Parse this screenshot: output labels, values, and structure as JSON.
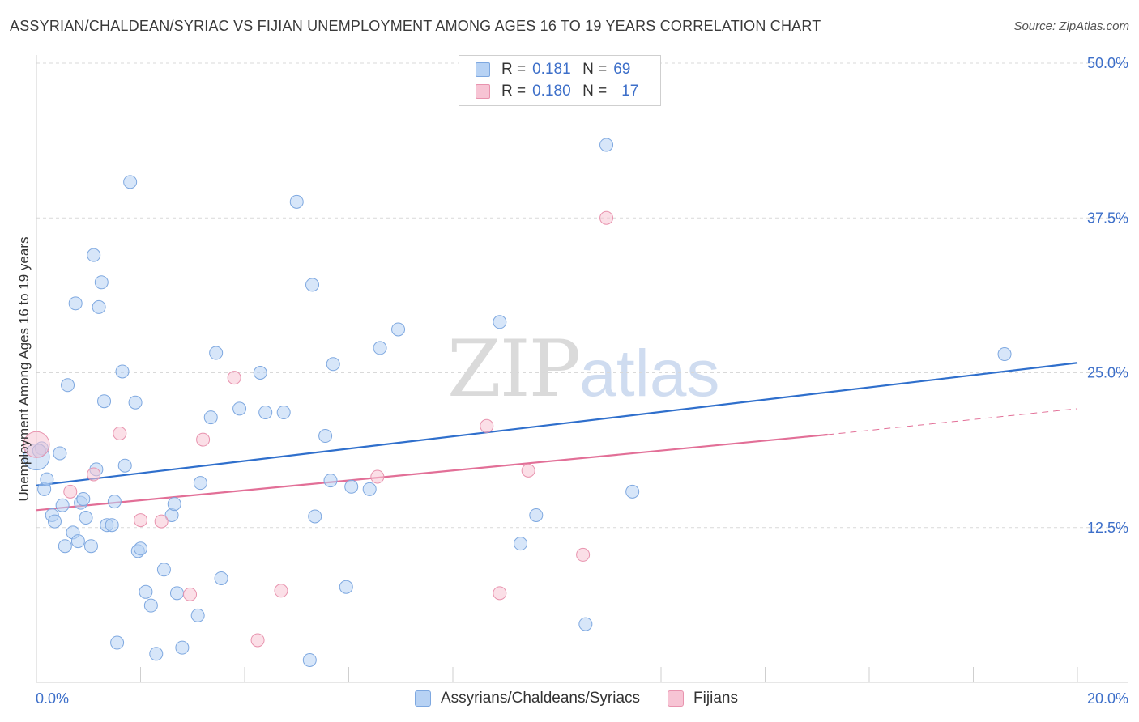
{
  "title": "ASSYRIAN/CHALDEAN/SYRIAC VS FIJIAN UNEMPLOYMENT AMONG AGES 16 TO 19 YEARS CORRELATION CHART",
  "source": "Source: ZipAtlas.com",
  "watermark": {
    "zip": "ZIP",
    "atlas": "atlas"
  },
  "legend_top": {
    "rows": [
      {
        "r_label": "R =",
        "r_value": "0.181",
        "n_label": "N =",
        "n_value": "69"
      },
      {
        "r_label": "R =",
        "r_value": "0.180",
        "n_label": "N =",
        "n_value": "17"
      }
    ]
  },
  "legend_bottom": {
    "series1": "Assyrians/Chaldeans/Syriacs",
    "series2": "Fijians"
  },
  "colors": {
    "blue_fill": "#b7d2f4",
    "blue_stroke": "#7ea8e0",
    "blue_line": "#2f6fcc",
    "pink_fill": "#f7c4d4",
    "pink_stroke": "#e893ae",
    "pink_line": "#e26f97",
    "tick_label": "#3d6fc9",
    "grid": "#d9d9d9"
  },
  "chart_data": {
    "type": "scatter",
    "xlabel": "",
    "ylabel": "Unemployment Among Ages 16 to 19 years",
    "xlim": [
      0,
      20
    ],
    "ylim": [
      0,
      50
    ],
    "x_tick_labels": [
      "0.0%",
      "20.0%"
    ],
    "y_ticks": [
      12.5,
      25.0,
      37.5,
      50.0
    ],
    "y_tick_labels": [
      "12.5%",
      "25.0%",
      "37.5%",
      "50.0%"
    ],
    "series": [
      {
        "name": "Assyrians/Chaldeans/Syriacs",
        "r": 0.181,
        "n": 69,
        "trend": {
          "x0": 0.0,
          "y0": 15.9,
          "x1": 20.0,
          "y1": 25.8
        },
        "points": [
          [
            0.0,
            18.2
          ],
          [
            0.1,
            18.9
          ],
          [
            0.15,
            15.6
          ],
          [
            0.2,
            16.4
          ],
          [
            0.3,
            13.5
          ],
          [
            0.35,
            13.0
          ],
          [
            0.45,
            18.5
          ],
          [
            0.5,
            14.3
          ],
          [
            0.55,
            11.0
          ],
          [
            0.6,
            24.0
          ],
          [
            0.7,
            12.1
          ],
          [
            0.75,
            30.6
          ],
          [
            0.8,
            11.4
          ],
          [
            0.85,
            14.5
          ],
          [
            0.9,
            14.8
          ],
          [
            0.95,
            13.3
          ],
          [
            1.05,
            11.0
          ],
          [
            1.1,
            34.5
          ],
          [
            1.15,
            17.2
          ],
          [
            1.2,
            30.3
          ],
          [
            1.25,
            32.3
          ],
          [
            1.3,
            22.7
          ],
          [
            1.35,
            12.7
          ],
          [
            1.45,
            12.7
          ],
          [
            1.5,
            14.6
          ],
          [
            1.55,
            3.2
          ],
          [
            1.65,
            25.1
          ],
          [
            1.7,
            17.5
          ],
          [
            1.8,
            40.4
          ],
          [
            1.9,
            22.6
          ],
          [
            1.95,
            10.6
          ],
          [
            2.0,
            10.8
          ],
          [
            2.1,
            7.3
          ],
          [
            2.2,
            6.2
          ],
          [
            2.3,
            2.3
          ],
          [
            2.45,
            9.1
          ],
          [
            2.6,
            13.5
          ],
          [
            2.65,
            14.4
          ],
          [
            2.7,
            7.2
          ],
          [
            2.8,
            2.8
          ],
          [
            3.15,
            16.1
          ],
          [
            3.1,
            5.4
          ],
          [
            3.35,
            21.4
          ],
          [
            3.45,
            26.6
          ],
          [
            3.55,
            8.4
          ],
          [
            3.9,
            22.1
          ],
          [
            4.3,
            25.0
          ],
          [
            4.4,
            21.8
          ],
          [
            4.75,
            21.8
          ],
          [
            5.0,
            38.8
          ],
          [
            5.25,
            1.8
          ],
          [
            5.3,
            32.1
          ],
          [
            5.35,
            13.4
          ],
          [
            5.55,
            19.9
          ],
          [
            5.65,
            16.3
          ],
          [
            5.7,
            25.7
          ],
          [
            5.95,
            7.7
          ],
          [
            6.05,
            15.8
          ],
          [
            6.4,
            15.6
          ],
          [
            6.6,
            27.0
          ],
          [
            6.95,
            28.5
          ],
          [
            8.9,
            29.1
          ],
          [
            9.3,
            11.2
          ],
          [
            9.6,
            13.5
          ],
          [
            10.55,
            4.7
          ],
          [
            10.95,
            43.4
          ],
          [
            11.45,
            15.4
          ],
          [
            18.6,
            26.5
          ],
          [
            0.05,
            18.7
          ]
        ]
      },
      {
        "name": "Fijians",
        "r": 0.18,
        "n": 17,
        "trend": {
          "x0": 0.0,
          "y0": 13.9,
          "x1": 15.2,
          "y1": 20.0,
          "dash_x1": 20.0,
          "dash_y1": 22.1
        },
        "points": [
          [
            0.0,
            19.2
          ],
          [
            0.65,
            15.4
          ],
          [
            1.1,
            16.8
          ],
          [
            1.6,
            20.1
          ],
          [
            2.0,
            13.1
          ],
          [
            2.4,
            13.0
          ],
          [
            2.95,
            7.1
          ],
          [
            3.2,
            19.6
          ],
          [
            3.8,
            24.6
          ],
          [
            4.25,
            3.4
          ],
          [
            4.7,
            7.4
          ],
          [
            6.55,
            16.6
          ],
          [
            8.65,
            20.7
          ],
          [
            8.9,
            7.2
          ],
          [
            9.45,
            17.1
          ],
          [
            10.5,
            10.3
          ],
          [
            10.95,
            37.5
          ]
        ]
      }
    ]
  }
}
